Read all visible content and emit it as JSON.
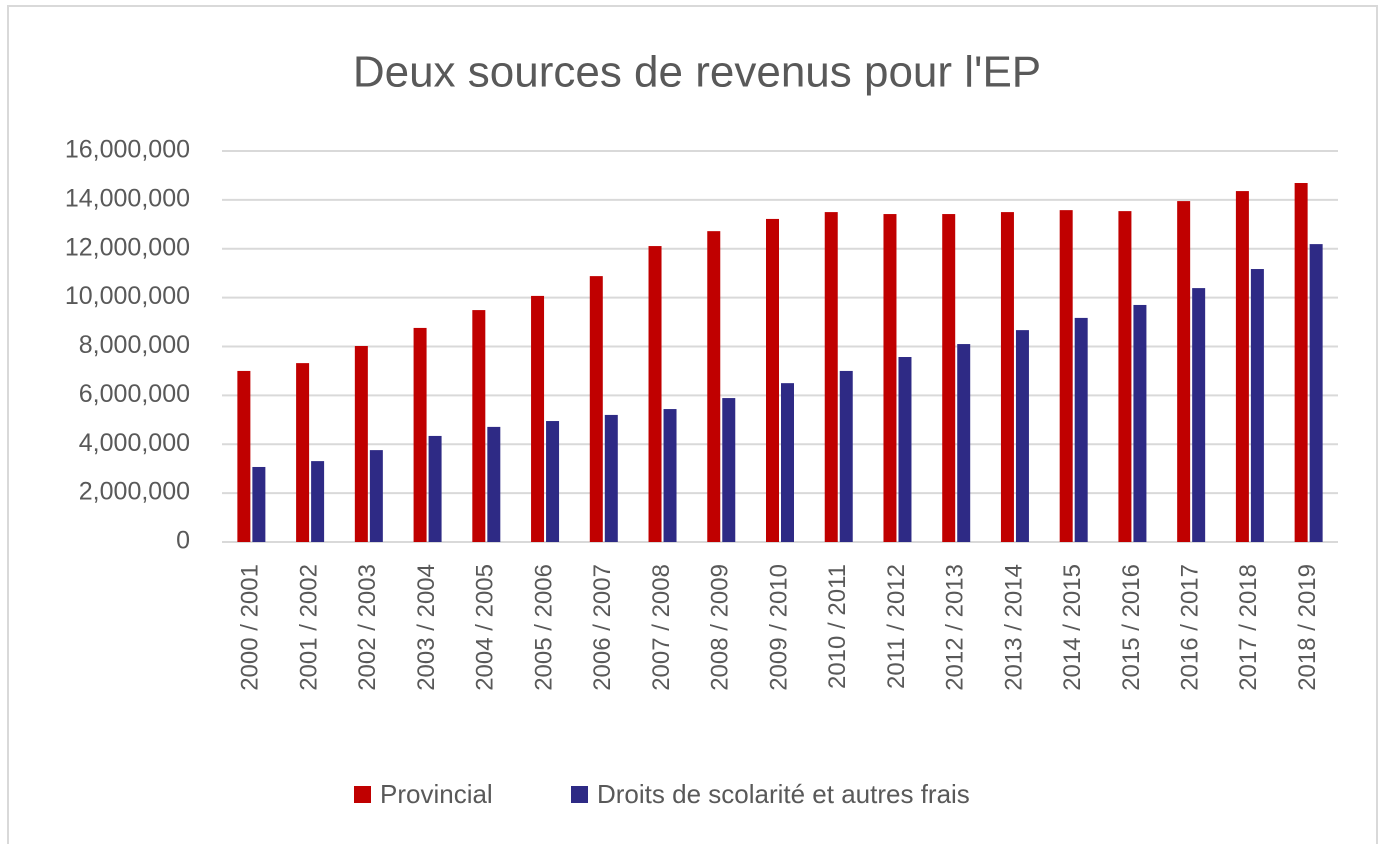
{
  "chart_data": {
    "type": "bar",
    "title": "Deux sources de revenus pour l'EP",
    "categories": [
      "2000 / 2001",
      "2001 / 2002",
      "2002 / 2003",
      "2003 / 2004",
      "2004 / 2005",
      "2005 / 2006",
      "2006 / 2007",
      "2007 / 2008",
      "2008 / 2009",
      "2009 / 2010",
      "2010 / 2011",
      "2011 / 2012",
      "2012 / 2013",
      "2013 / 2014",
      "2014 / 2015",
      "2015 / 2016",
      "2016 / 2017",
      "2017 / 2018",
      "2018 / 2019"
    ],
    "series": [
      {
        "name": "Provincial",
        "color": "#c00000",
        "values": [
          7000000,
          7320000,
          8020000,
          8760000,
          9490000,
          10070000,
          10880000,
          12110000,
          12720000,
          13220000,
          13500000,
          13420000,
          13420000,
          13500000,
          13580000,
          13540000,
          13950000,
          14360000,
          14690000
        ]
      },
      {
        "name": "Droits de scolarité et autres frais",
        "color": "#2e2a85",
        "values": [
          3070000,
          3310000,
          3760000,
          4340000,
          4710000,
          4950000,
          5200000,
          5440000,
          5890000,
          6500000,
          7000000,
          7570000,
          8100000,
          8670000,
          9170000,
          9700000,
          10390000,
          11170000,
          12190000
        ]
      }
    ],
    "ylim": [
      0,
      16000000
    ],
    "yticks": [
      0,
      {
        "value": 2000000,
        "label": "2,000,000"
      },
      {
        "value": 4000000,
        "label": "4,000,000"
      },
      {
        "value": 6000000,
        "label": "6,000,000"
      },
      {
        "value": 8000000,
        "label": "8,000,000"
      },
      {
        "value": 10000000,
        "label": "10,000,000"
      },
      {
        "value": 12000000,
        "label": "12,000,000"
      },
      {
        "value": 14000000,
        "label": "14,000,000"
      },
      {
        "value": 16000000,
        "label": "16,000,000"
      }
    ],
    "grid": true,
    "legend": "bottom"
  }
}
